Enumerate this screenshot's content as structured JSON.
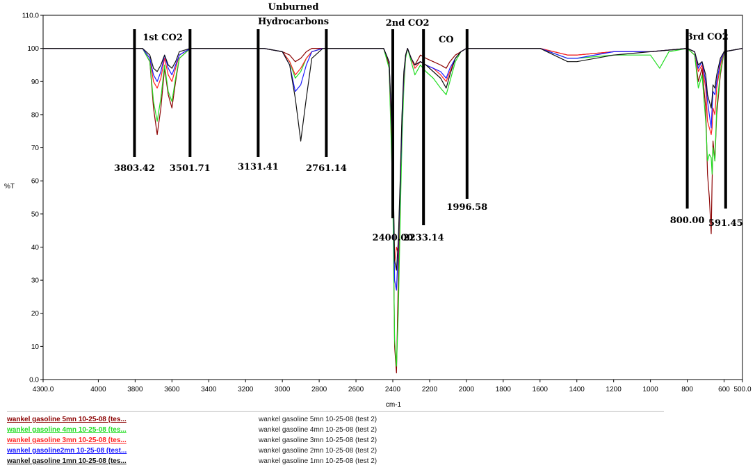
{
  "chart_data": {
    "type": "line",
    "xlabel": "cm-1",
    "ylabel": "%T",
    "xlim": [
      4300.0,
      500.0
    ],
    "ylim": [
      0.0,
      110.0
    ],
    "x_ticks": [
      "4300.0",
      "4000",
      "3800",
      "3600",
      "3400",
      "3200",
      "3000",
      "2800",
      "2600",
      "2400",
      "2200",
      "2000",
      "1800",
      "1600",
      "1400",
      "1200",
      "1000",
      "800",
      "600",
      "500.0"
    ],
    "y_ticks": [
      "110.0",
      "100",
      "90",
      "80",
      "70",
      "60",
      "50",
      "40",
      "30",
      "20",
      "10",
      "0.0"
    ],
    "regions": [
      {
        "label": "1st CO2",
        "x": 3650
      },
      {
        "label": "Unburned",
        "x": 2940
      },
      {
        "label": "Hydrocarbons",
        "x": 2940
      },
      {
        "label": "2nd CO2",
        "x": 2320
      },
      {
        "label": "CO",
        "x": 2110
      },
      {
        "label": "3rd CO2",
        "x": 690
      }
    ],
    "markers": [
      {
        "label": "3803.42",
        "x": 3803.42
      },
      {
        "label": "3501.71",
        "x": 3501.71
      },
      {
        "label": "3131.41",
        "x": 3131.41
      },
      {
        "label": "2761.14",
        "x": 2761.14
      },
      {
        "label": "2400.00",
        "x": 2400.0
      },
      {
        "label": "2233.14",
        "x": 2233.14
      },
      {
        "label": "1996.58",
        "x": 1996.58
      },
      {
        "label": "800.00",
        "x": 800.0
      },
      {
        "label": "591.45",
        "x": 591.45
      }
    ],
    "series": [
      {
        "legend_name": "wankel gasoline 5mn 10-25-08 (tes...",
        "legend_desc": "wankel gasoline 5mn 10-25-08 (test 2)",
        "color": "#8b0000",
        "x": [
          4300,
          3760,
          3720,
          3700,
          3680,
          3660,
          3640,
          3620,
          3600,
          3580,
          3560,
          3500,
          3100,
          3000,
          2960,
          2930,
          2900,
          2870,
          2840,
          2780,
          2450,
          2420,
          2400,
          2390,
          2380,
          2370,
          2360,
          2350,
          2340,
          2330,
          2320,
          2300,
          2280,
          2250,
          2220,
          2180,
          2140,
          2110,
          2090,
          2060,
          2030,
          2000,
          1600,
          1450,
          1400,
          1200,
          1000,
          800,
          760,
          740,
          720,
          700,
          690,
          680,
          670,
          665,
          660,
          650,
          640,
          620,
          600,
          500
        ],
        "y": [
          100,
          100,
          96,
          82,
          74,
          82,
          94,
          86,
          82,
          90,
          97,
          100,
          100,
          99,
          98,
          96,
          97,
          99,
          100,
          100,
          100,
          95,
          60,
          10,
          2,
          30,
          55,
          75,
          90,
          98,
          100,
          97,
          95,
          98,
          97,
          96,
          95,
          94,
          96,
          98,
          99,
          100,
          100,
          98,
          98,
          99,
          99,
          100,
          98,
          90,
          94,
          82,
          62,
          55,
          44,
          60,
          72,
          66,
          80,
          92,
          99,
          100
        ]
      },
      {
        "legend_name": "wankel gasoline 4mn 10-25-08 (tes...",
        "legend_desc": "wankel gasoline 4mn 10-25-08 (test 2)",
        "color": "#22dd22",
        "x": [
          4300,
          3760,
          3720,
          3700,
          3680,
          3660,
          3640,
          3620,
          3600,
          3580,
          3560,
          3500,
          3100,
          3000,
          2960,
          2930,
          2900,
          2870,
          2840,
          2780,
          2450,
          2420,
          2400,
          2390,
          2380,
          2370,
          2360,
          2350,
          2340,
          2330,
          2320,
          2300,
          2280,
          2250,
          2220,
          2180,
          2140,
          2110,
          2090,
          2060,
          2030,
          2000,
          1600,
          1450,
          1400,
          1200,
          1000,
          950,
          900,
          800,
          760,
          740,
          720,
          700,
          690,
          680,
          670,
          665,
          660,
          650,
          640,
          620,
          600,
          500
        ],
        "y": [
          100,
          100,
          96,
          84,
          78,
          85,
          95,
          87,
          84,
          91,
          97,
          100,
          100,
          99,
          96,
          91,
          93,
          97,
          99,
          100,
          100,
          94,
          55,
          12,
          4,
          20,
          48,
          72,
          88,
          97,
          100,
          96,
          92,
          95,
          93,
          91,
          88,
          86,
          90,
          96,
          99,
          100,
          100,
          97,
          97,
          98,
          98,
          94,
          99,
          100,
          98,
          88,
          92,
          78,
          66,
          68,
          67,
          62,
          70,
          66,
          82,
          93,
          99,
          100
        ]
      },
      {
        "legend_name": "wankel gasoline 3mn 10-25-08 (tes...",
        "legend_desc": "wankel gasoline 3mn 10-25-08 (test 2)",
        "color": "#ff2020",
        "x": [
          4300,
          3760,
          3720,
          3700,
          3680,
          3660,
          3640,
          3620,
          3600,
          3580,
          3560,
          3500,
          3100,
          3000,
          2960,
          2930,
          2900,
          2870,
          2840,
          2780,
          2450,
          2420,
          2400,
          2390,
          2380,
          2370,
          2360,
          2350,
          2340,
          2330,
          2320,
          2300,
          2280,
          2250,
          2220,
          2180,
          2140,
          2110,
          2090,
          2060,
          2030,
          2000,
          1600,
          1450,
          1400,
          1200,
          1000,
          800,
          760,
          740,
          720,
          700,
          690,
          680,
          670,
          665,
          660,
          650,
          640,
          620,
          600,
          500
        ],
        "y": [
          100,
          100,
          97,
          90,
          88,
          91,
          97,
          92,
          90,
          94,
          98,
          100,
          100,
          99,
          96,
          92,
          94,
          97,
          99,
          100,
          100,
          96,
          65,
          35,
          40,
          38,
          58,
          78,
          91,
          98,
          100,
          97,
          94,
          96,
          95,
          94,
          92,
          90,
          93,
          97,
          99,
          100,
          100,
          98,
          98,
          99,
          99,
          100,
          99,
          93,
          95,
          88,
          78,
          76,
          74,
          76,
          82,
          80,
          88,
          95,
          99,
          100
        ]
      },
      {
        "legend_name": "wankel gasoline2mn 10-25-08 (test...",
        "legend_desc": "wankel gasoline 2mn 10-25-08 (test 2)",
        "color": "#1a1aff",
        "x": [
          4300,
          3760,
          3720,
          3700,
          3680,
          3660,
          3640,
          3620,
          3600,
          3580,
          3560,
          3500,
          3100,
          3000,
          2960,
          2930,
          2900,
          2870,
          2840,
          2780,
          2450,
          2420,
          2400,
          2390,
          2380,
          2370,
          2360,
          2350,
          2340,
          2330,
          2320,
          2300,
          2280,
          2250,
          2220,
          2180,
          2140,
          2110,
          2090,
          2060,
          2030,
          2000,
          1600,
          1450,
          1400,
          1200,
          1000,
          800,
          760,
          740,
          720,
          700,
          690,
          680,
          670,
          665,
          660,
          650,
          640,
          620,
          600,
          500
        ],
        "y": [
          100,
          100,
          97,
          92,
          90,
          93,
          98,
          94,
          92,
          95,
          98,
          100,
          100,
          99,
          95,
          87,
          89,
          95,
          99,
          100,
          100,
          96,
          68,
          30,
          27,
          40,
          58,
          78,
          92,
          98,
          100,
          97,
          95,
          96,
          95,
          94,
          93,
          91,
          94,
          97,
          99,
          100,
          100,
          97,
          97,
          99,
          99,
          100,
          99,
          94,
          96,
          90,
          84,
          80,
          76,
          82,
          87,
          86,
          90,
          96,
          99,
          100
        ]
      },
      {
        "legend_name": "wankel gasoline 1mn 10-25-08 (tes...",
        "legend_desc": "wankel gasoline 1mn 10-25-08 (test 2)",
        "color": "#111111",
        "x": [
          4300,
          3760,
          3720,
          3700,
          3680,
          3660,
          3640,
          3620,
          3600,
          3580,
          3560,
          3500,
          3100,
          3000,
          2960,
          2930,
          2900,
          2870,
          2840,
          2780,
          2450,
          2420,
          2400,
          2390,
          2380,
          2370,
          2360,
          2350,
          2340,
          2330,
          2320,
          2300,
          2280,
          2250,
          2220,
          2180,
          2140,
          2110,
          2090,
          2060,
          2030,
          2000,
          1600,
          1450,
          1400,
          1200,
          1000,
          800,
          760,
          740,
          720,
          700,
          690,
          680,
          670,
          665,
          660,
          650,
          640,
          620,
          600,
          500
        ],
        "y": [
          100,
          100,
          98,
          94,
          93,
          95,
          98,
          95,
          94,
          96,
          99,
          100,
          100,
          99,
          95,
          85,
          72,
          85,
          97,
          100,
          100,
          96,
          70,
          36,
          33,
          42,
          60,
          80,
          93,
          98,
          100,
          97,
          95,
          96,
          95,
          93,
          91,
          88,
          92,
          97,
          99,
          100,
          100,
          96,
          96,
          98,
          99,
          100,
          99,
          95,
          96,
          92,
          86,
          84,
          82,
          85,
          89,
          88,
          92,
          97,
          99,
          100
        ]
      }
    ]
  }
}
